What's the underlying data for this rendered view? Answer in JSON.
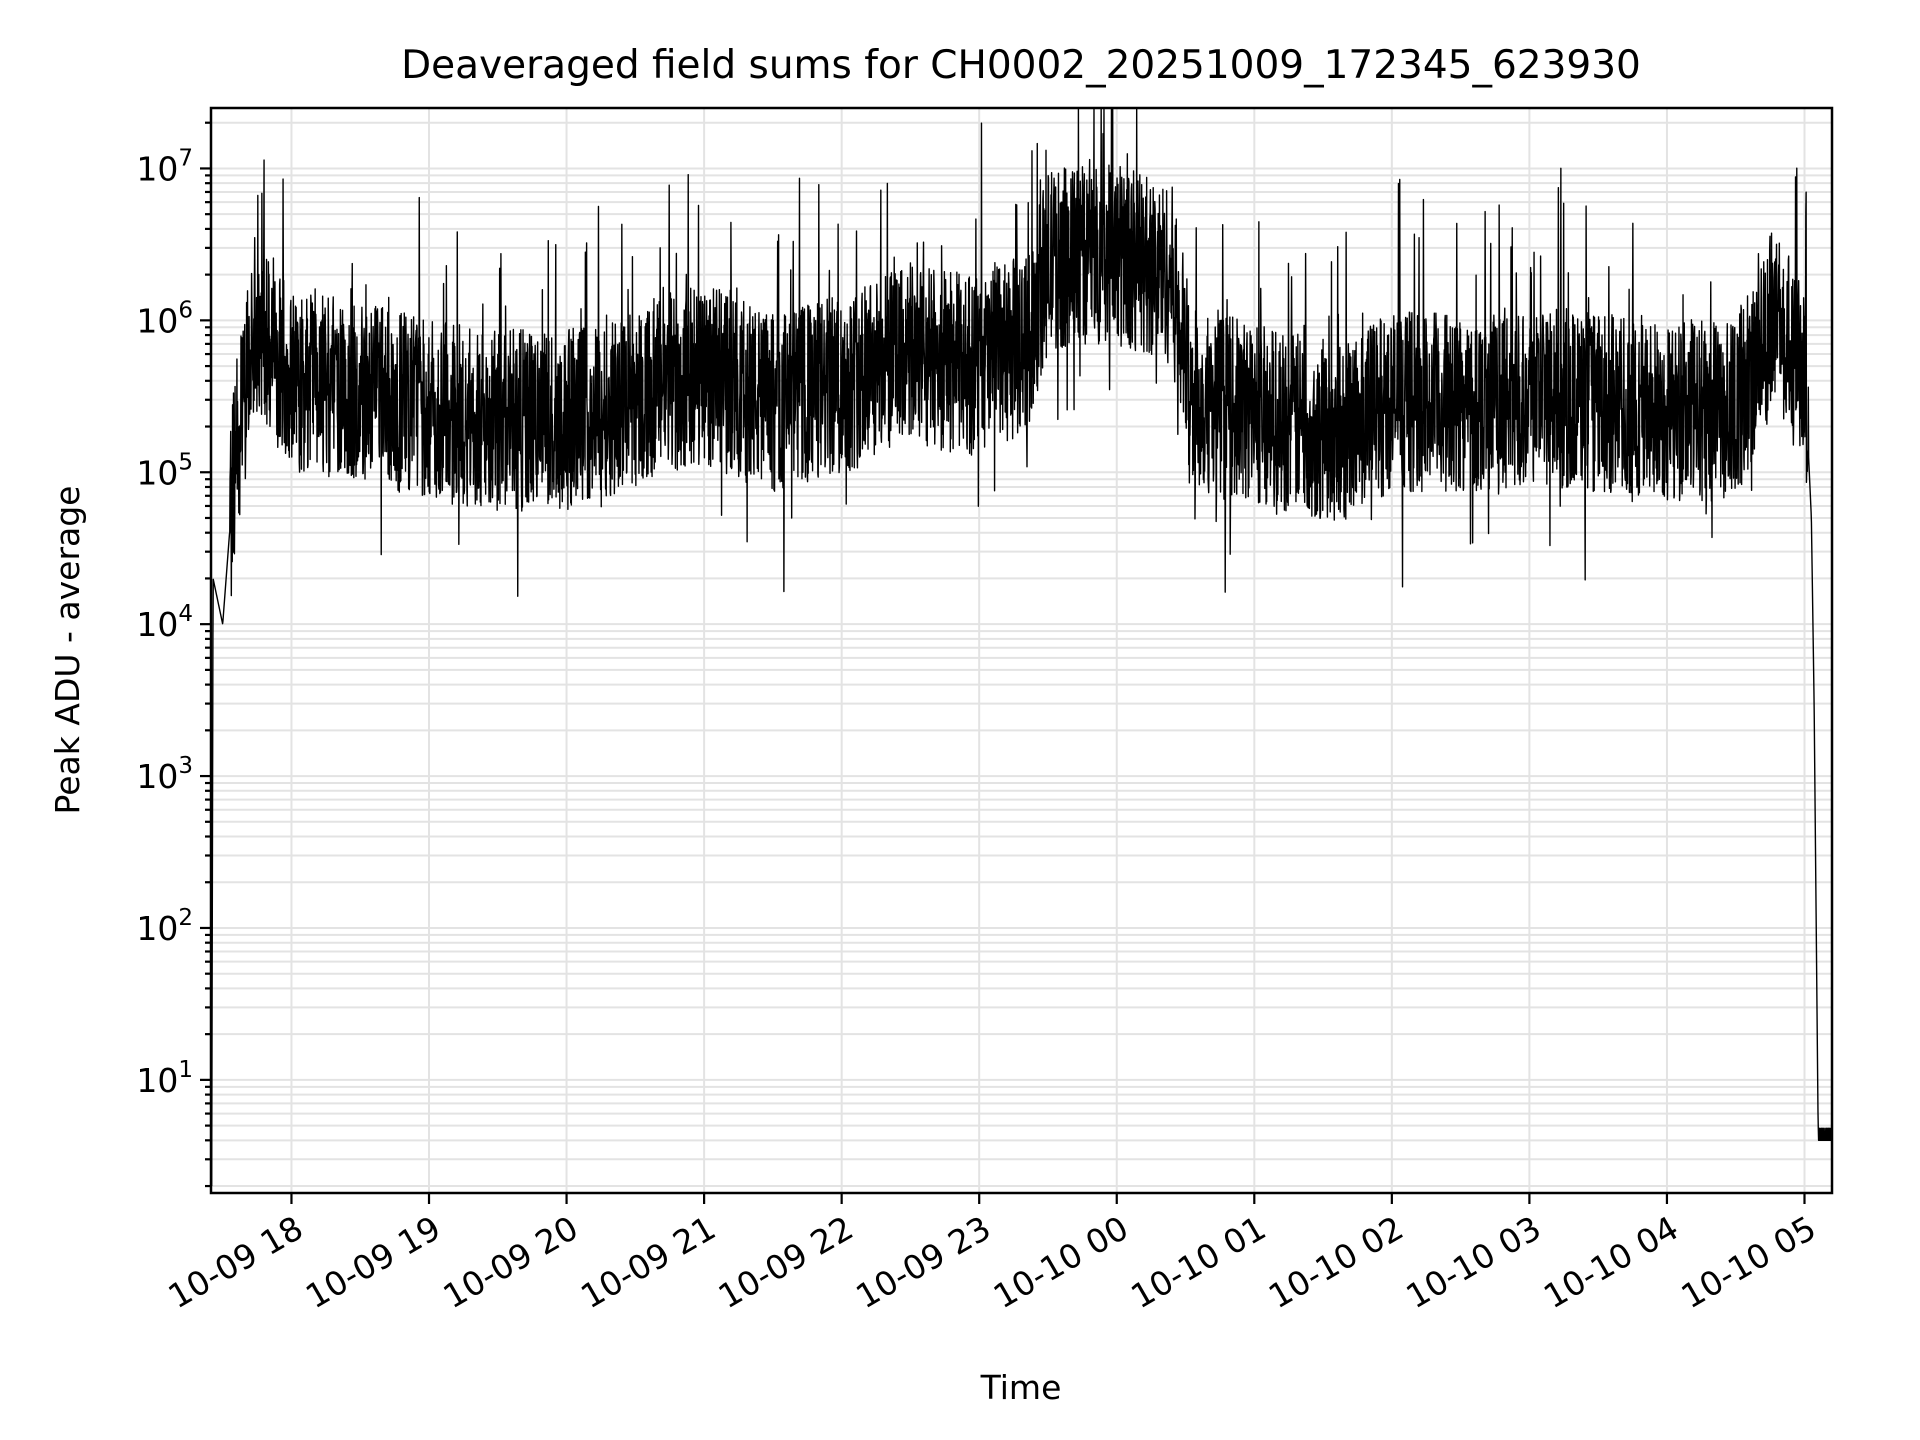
{
  "chart_data": {
    "type": "line",
    "title": "Deaveraged field sums for CH0002_20251009_172345_623930",
    "xlabel": "Time",
    "ylabel": "Peak ADU - average",
    "yscale": "log",
    "ylim": [
      1.8,
      25000000
    ],
    "xlim_hours": [
      -0.585,
      11.2
    ],
    "grid": true,
    "x_tick_labels": [
      "10-09 18",
      "10-09 19",
      "10-09 20",
      "10-09 21",
      "10-09 22",
      "10-09 23",
      "10-10 00",
      "10-10 01",
      "10-10 02",
      "10-10 03",
      "10-10 04",
      "10-10 05"
    ],
    "x_tick_hours": [
      0,
      1,
      2,
      3,
      4,
      5,
      6,
      7,
      8,
      9,
      10,
      11
    ],
    "y_ticks": [
      {
        "value": 10,
        "base": "10",
        "exp": "1"
      },
      {
        "value": 100,
        "base": "10",
        "exp": "2"
      },
      {
        "value": 1000,
        "base": "10",
        "exp": "3"
      },
      {
        "value": 10000,
        "base": "10",
        "exp": "4"
      },
      {
        "value": 100000,
        "base": "10",
        "exp": "5"
      },
      {
        "value": 1000000,
        "base": "10",
        "exp": "6"
      },
      {
        "value": 10000000,
        "base": "10",
        "exp": "7"
      }
    ],
    "series": [
      {
        "name": "Deaveraged field sum",
        "color": "#000000",
        "noisy": true,
        "start_hour": -0.58,
        "end_hour": 11.2,
        "envelope": [
          {
            "hour": -0.58,
            "value": 2
          },
          {
            "hour": -0.57,
            "value": 20000
          },
          {
            "hour": -0.5,
            "value": 10000
          },
          {
            "hour": -0.45,
            "value": 40000
          },
          {
            "hour": -0.4,
            "value": 150000
          },
          {
            "hour": -0.3,
            "value": 500000
          },
          {
            "hour": -0.25,
            "value": 900000
          },
          {
            "hour": -0.15,
            "value": 700000
          },
          {
            "hour": 0,
            "value": 380000
          },
          {
            "hour": 0.5,
            "value": 350000
          },
          {
            "hour": 1,
            "value": 250000
          },
          {
            "hour": 1.5,
            "value": 220000
          },
          {
            "hour": 2,
            "value": 220000
          },
          {
            "hour": 2.5,
            "value": 320000
          },
          {
            "hour": 3,
            "value": 450000
          },
          {
            "hour": 3.5,
            "value": 280000
          },
          {
            "hour": 4,
            "value": 380000
          },
          {
            "hour": 4.5,
            "value": 600000
          },
          {
            "hour": 5,
            "value": 500000
          },
          {
            "hour": 5.35,
            "value": 700000
          },
          {
            "hour": 5.5,
            "value": 2500000
          },
          {
            "hour": 6,
            "value": 2800000
          },
          {
            "hour": 6.4,
            "value": 2000000
          },
          {
            "hour": 6.55,
            "value": 300000
          },
          {
            "hour": 7,
            "value": 250000
          },
          {
            "hour": 7.6,
            "value": 180000
          },
          {
            "hour": 8,
            "value": 300000
          },
          {
            "hour": 8.5,
            "value": 280000
          },
          {
            "hour": 9,
            "value": 330000
          },
          {
            "hour": 9.5,
            "value": 280000
          },
          {
            "hour": 10,
            "value": 250000
          },
          {
            "hour": 10.5,
            "value": 260000
          },
          {
            "hour": 10.8,
            "value": 1200000
          },
          {
            "hour": 10.93,
            "value": 500000
          },
          {
            "hour": 11.0,
            "value": 500000
          },
          {
            "hour": 11.05,
            "value": 50000
          },
          {
            "hour": 11.07,
            "value": 3000
          },
          {
            "hour": 11.1,
            "value": 4
          },
          {
            "hour": 11.2,
            "value": 4
          }
        ]
      }
    ]
  }
}
